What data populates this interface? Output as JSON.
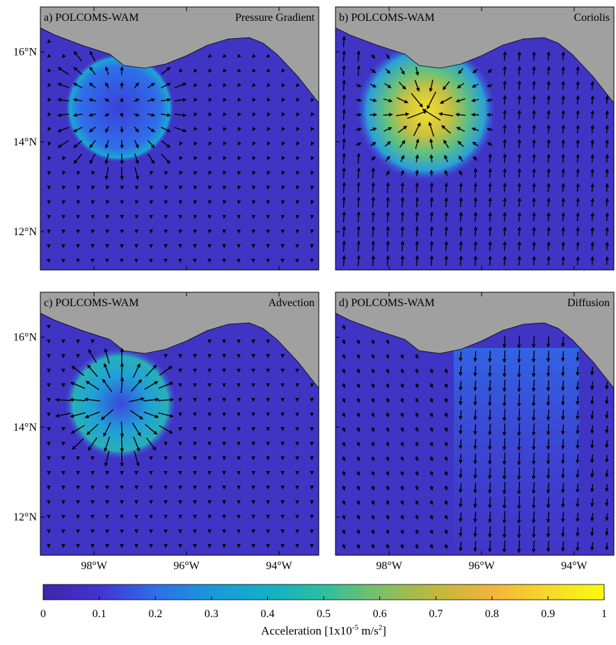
{
  "panels": [
    {
      "label": "a) POLCOMS-WAM",
      "term": "Pressure Gradient"
    },
    {
      "label": "b) POLCOMS-WAM",
      "term": "Coriolis"
    },
    {
      "label": "c) POLCOMS-WAM",
      "term": "Advection"
    },
    {
      "label": "d) POLCOMS-WAM",
      "term": "Diffusion"
    }
  ],
  "lat_range": [
    11.15,
    17.0
  ],
  "lon_range": [
    -99.16,
    -93.14
  ],
  "lat_ticks": [
    {
      "value": 16,
      "label": "16°N"
    },
    {
      "value": 14,
      "label": "14°N"
    },
    {
      "value": 12,
      "label": "12°N"
    }
  ],
  "lon_ticks": [
    {
      "value": -98,
      "label": "98°W"
    },
    {
      "value": -96,
      "label": "96°W"
    },
    {
      "value": -94,
      "label": "94°W"
    }
  ],
  "colorbar": {
    "range": [
      0,
      1
    ],
    "ticks": [
      0,
      0.1,
      0.2,
      0.3,
      0.4,
      0.5,
      0.6,
      0.7,
      0.8,
      0.9,
      1
    ],
    "label_parts": [
      "Acceleration [1x10",
      "-5",
      " m/s",
      "2",
      "]"
    ]
  }
}
